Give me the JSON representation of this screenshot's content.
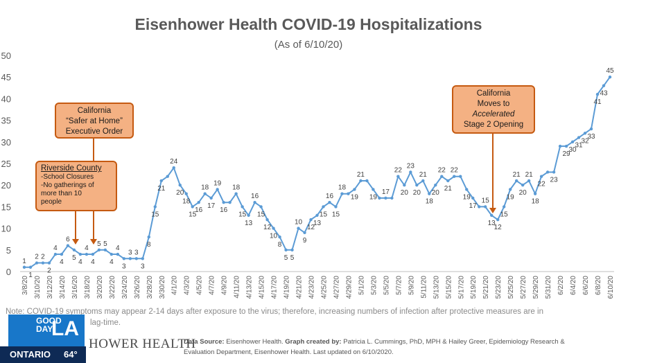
{
  "chart_data": {
    "type": "line",
    "title": "Eisenhower Health COVID-19 Hospitalizations",
    "subtitle": "(As of 6/10/20)",
    "xlabel": "",
    "ylabel": "",
    "ylim": [
      0,
      50
    ],
    "yticks": [
      0,
      5,
      10,
      15,
      20,
      25,
      30,
      35,
      40,
      45,
      50
    ],
    "grid": false,
    "legend": "none",
    "start_date": "3/8/20",
    "x_tick_labels": [
      "3/8/20",
      "3/10/20",
      "3/12/20",
      "3/14/20",
      "3/16/20",
      "3/18/20",
      "3/20/20",
      "3/22/20",
      "3/24/20",
      "3/26/20",
      "3/28/20",
      "3/30/20",
      "4/1/20",
      "4/3/20",
      "4/5/20",
      "4/7/20",
      "4/9/20",
      "4/11/20",
      "4/13/20",
      "4/15/20",
      "4/17/20",
      "4/19/20",
      "4/21/20",
      "4/23/20",
      "4/25/20",
      "4/27/20",
      "4/29/20",
      "5/1/20",
      "5/3/20",
      "5/5/20",
      "5/7/20",
      "5/9/20",
      "5/11/20",
      "5/13/20",
      "5/15/20",
      "5/17/20",
      "5/19/20",
      "5/21/20",
      "5/23/20",
      "5/25/20",
      "5/27/20",
      "5/29/20",
      "5/31/20",
      "6/2/20",
      "6/4/20",
      "6/6/20",
      "6/8/20",
      "6/10/20"
    ],
    "values": [
      1,
      1,
      2,
      2,
      2,
      4,
      4,
      6,
      5,
      4,
      4,
      4,
      5,
      5,
      4,
      4,
      3,
      3,
      3,
      3,
      8,
      15,
      21,
      22,
      24,
      20,
      18,
      15,
      16,
      18,
      17,
      19,
      16,
      16,
      18,
      15,
      13,
      16,
      15,
      12,
      10,
      8,
      5,
      5,
      10,
      9,
      12,
      13,
      15,
      16,
      15,
      18,
      18,
      19,
      21,
      21,
      19,
      17,
      17,
      17,
      22,
      20,
      23,
      20,
      21,
      18,
      20,
      22,
      21,
      22,
      22,
      19,
      17,
      15,
      15,
      13,
      12,
      15,
      19,
      21,
      20,
      21,
      18,
      22,
      23,
      23,
      29,
      29,
      30,
      31,
      32,
      33,
      41,
      43,
      45
    ],
    "data_labels": [
      {
        "i": 0,
        "t": "1"
      },
      {
        "i": 1,
        "t": "1"
      },
      {
        "i": 2,
        "t": "2"
      },
      {
        "i": 3,
        "t": "2"
      },
      {
        "i": 4,
        "t": "2"
      },
      {
        "i": 5,
        "t": "4"
      },
      {
        "i": 6,
        "t": "4"
      },
      {
        "i": 7,
        "t": "6"
      },
      {
        "i": 8,
        "t": "5"
      },
      {
        "i": 9,
        "t": "4"
      },
      {
        "i": 10,
        "t": "4"
      },
      {
        "i": 11,
        "t": "4"
      },
      {
        "i": 12,
        "t": "5"
      },
      {
        "i": 13,
        "t": "5"
      },
      {
        "i": 14,
        "t": "4"
      },
      {
        "i": 15,
        "t": "4"
      },
      {
        "i": 16,
        "t": "3"
      },
      {
        "i": 17,
        "t": "3"
      },
      {
        "i": 18,
        "t": "3"
      },
      {
        "i": 19,
        "t": "3"
      },
      {
        "i": 20,
        "t": "8"
      },
      {
        "i": 21,
        "t": "15"
      },
      {
        "i": 22,
        "t": "21"
      },
      {
        "i": 24,
        "t": "24"
      },
      {
        "i": 25,
        "t": "20"
      },
      {
        "i": 26,
        "t": "18"
      },
      {
        "i": 27,
        "t": "15"
      },
      {
        "i": 28,
        "t": "16"
      },
      {
        "i": 29,
        "t": "18"
      },
      {
        "i": 30,
        "t": "17"
      },
      {
        "i": 31,
        "t": "19"
      },
      {
        "i": 32,
        "t": "16"
      },
      {
        "i": 34,
        "t": "18"
      },
      {
        "i": 35,
        "t": "15"
      },
      {
        "i": 36,
        "t": "13"
      },
      {
        "i": 37,
        "t": "16"
      },
      {
        "i": 38,
        "t": "15"
      },
      {
        "i": 39,
        "t": "12"
      },
      {
        "i": 40,
        "t": "10"
      },
      {
        "i": 41,
        "t": "8"
      },
      {
        "i": 42,
        "t": "5"
      },
      {
        "i": 43,
        "t": "5"
      },
      {
        "i": 44,
        "t": "10"
      },
      {
        "i": 45,
        "t": "9"
      },
      {
        "i": 46,
        "t": "12"
      },
      {
        "i": 47,
        "t": "13"
      },
      {
        "i": 48,
        "t": "15"
      },
      {
        "i": 49,
        "t": "16"
      },
      {
        "i": 50,
        "t": "15"
      },
      {
        "i": 51,
        "t": "18"
      },
      {
        "i": 53,
        "t": "19"
      },
      {
        "i": 54,
        "t": "21"
      },
      {
        "i": 56,
        "t": "19"
      },
      {
        "i": 58,
        "t": "17"
      },
      {
        "i": 60,
        "t": "22"
      },
      {
        "i": 61,
        "t": "20"
      },
      {
        "i": 62,
        "t": "23"
      },
      {
        "i": 63,
        "t": "20"
      },
      {
        "i": 64,
        "t": "21"
      },
      {
        "i": 65,
        "t": "18"
      },
      {
        "i": 66,
        "t": "20"
      },
      {
        "i": 67,
        "t": "22"
      },
      {
        "i": 68,
        "t": "21"
      },
      {
        "i": 69,
        "t": "22"
      },
      {
        "i": 71,
        "t": "19"
      },
      {
        "i": 72,
        "t": "17"
      },
      {
        "i": 74,
        "t": "15"
      },
      {
        "i": 75,
        "t": "13"
      },
      {
        "i": 76,
        "t": "12"
      },
      {
        "i": 77,
        "t": "15"
      },
      {
        "i": 78,
        "t": "19"
      },
      {
        "i": 79,
        "t": "21"
      },
      {
        "i": 80,
        "t": "20"
      },
      {
        "i": 81,
        "t": "21"
      },
      {
        "i": 82,
        "t": "18"
      },
      {
        "i": 83,
        "t": "22"
      },
      {
        "i": 85,
        "t": "23"
      },
      {
        "i": 87,
        "t": "29"
      },
      {
        "i": 88,
        "t": "30"
      },
      {
        "i": 89,
        "t": "31"
      },
      {
        "i": 90,
        "t": "32"
      },
      {
        "i": 91,
        "t": "33"
      },
      {
        "i": 92,
        "t": "41"
      },
      {
        "i": 93,
        "t": "43"
      },
      {
        "i": 94,
        "t": "45"
      }
    ],
    "line_color": "#5b9bd5",
    "annotations": [
      {
        "id": "safer",
        "lines": [
          "California",
          "“Safer at Home”",
          "Executive Order"
        ]
      },
      {
        "id": "riverside",
        "heading": "Riverside County",
        "lines": [
          "-School Closures",
          "-No gatherings of",
          "more than 10",
          "people"
        ]
      },
      {
        "id": "stage2",
        "lines": [
          "California",
          "Moves to",
          "Accelerated",
          "Stage 2 Opening"
        ]
      }
    ],
    "annotation_color": "#f4b183"
  },
  "note": "Note: COVID-19 symptoms may appear 2-14 days after exposure to the virus; therefore, increasing numbers of infection after protective measures are in",
  "note_line2": "lag-time.",
  "logo_text": "HOWER HEALTH",
  "footer": {
    "source_label": "Data Source:",
    "source_value": "Eisenhower Health.",
    "created_label": "Graph created by:",
    "created_value": "Patricia L. Cummings, PhD, MPH & Hailey Greer, Epidemiology Research &",
    "line2": "Evaluation Department, Eisenhower Health. Last updated on 6/10/2020."
  },
  "tv": {
    "good": "GOOD",
    "day": "DAY",
    "la": "LA",
    "city": "ONTARIO",
    "temp": "64°",
    "box_color": "#1877c9",
    "bar_color": "#0e2a55"
  }
}
